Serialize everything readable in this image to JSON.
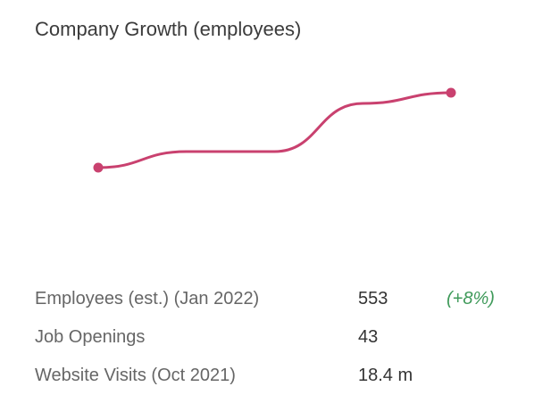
{
  "title": "Company Growth (employees)",
  "chart_data": {
    "type": "line",
    "title": "Company Growth (employees)",
    "points": [
      {
        "x": 0,
        "y": 510
      },
      {
        "x": 1,
        "y": 525
      },
      {
        "x": 2,
        "y": 525
      },
      {
        "x": 3,
        "y": 570
      },
      {
        "x": 4,
        "y": 580
      }
    ],
    "ylim": [
      450,
      600
    ],
    "grid": false,
    "color": "#c9416f"
  },
  "stats": [
    {
      "label": "Employees (est.) (Jan 2022)",
      "value": "553",
      "change": "(+8%)"
    },
    {
      "label": "Job Openings",
      "value": "43",
      "change": ""
    },
    {
      "label": "Website Visits (Oct 2021)",
      "value": "18.4 m",
      "change": ""
    }
  ],
  "colors": {
    "accent": "#c9416f",
    "positive": "#3f9a5a"
  }
}
